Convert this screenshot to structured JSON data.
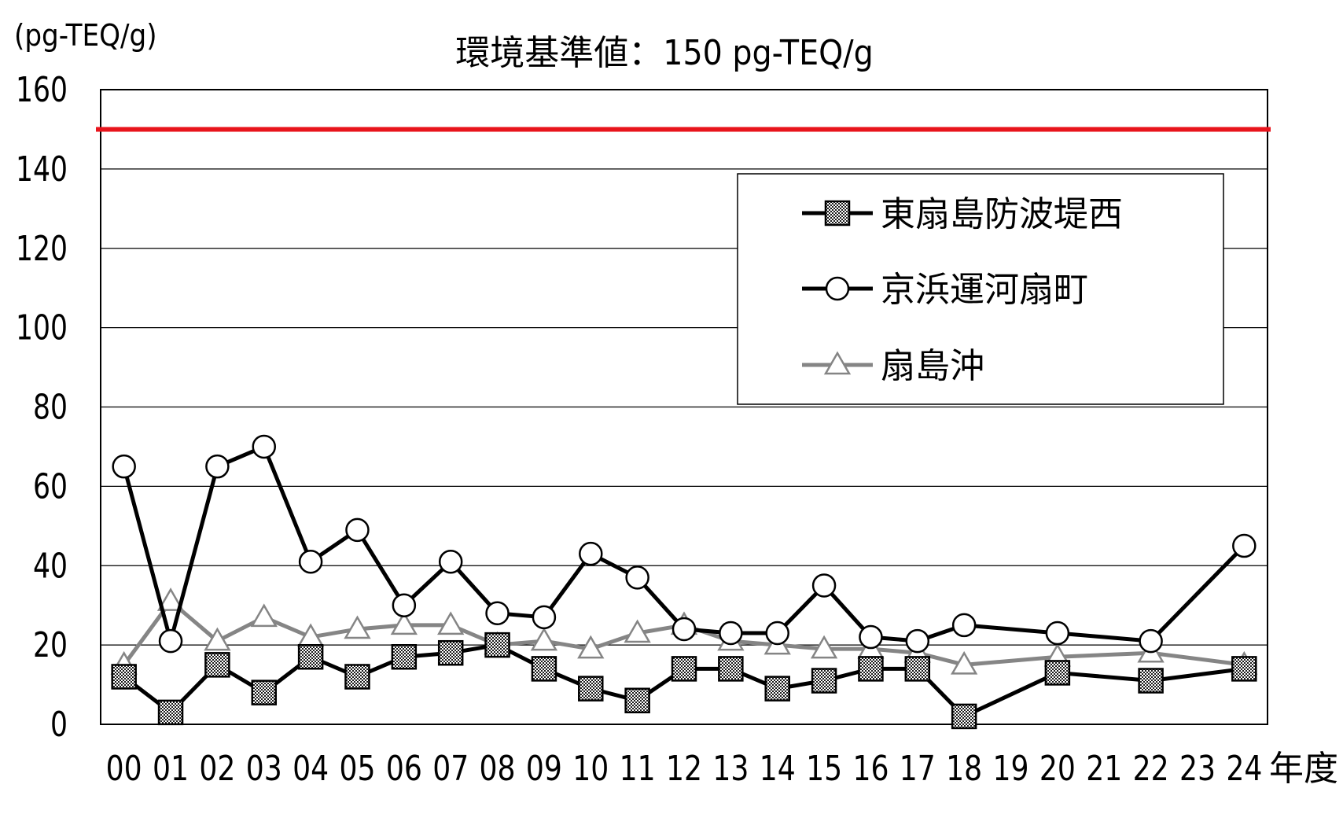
{
  "chart_data": {
    "type": "line",
    "unit_label": "(pg-TEQ/g)",
    "title": "環境基準値：150 pg-TEQ/g",
    "x_suffix": "年度",
    "categories": [
      "00",
      "01",
      "02",
      "03",
      "04",
      "05",
      "06",
      "07",
      "08",
      "09",
      "10",
      "11",
      "12",
      "13",
      "14",
      "15",
      "16",
      "17",
      "18",
      "19",
      "20",
      "21",
      "22",
      "23",
      "24"
    ],
    "ylim": [
      0,
      160
    ],
    "yticks": [
      0,
      20,
      40,
      60,
      80,
      100,
      120,
      140,
      160
    ],
    "grid": true,
    "reference_line": {
      "value": 150,
      "color": "#e8141c"
    },
    "legend_position": "top-right",
    "series": [
      {
        "name": "東扇島防波堤西",
        "marker": "square",
        "color": "#000000",
        "values": [
          12,
          3,
          15,
          8,
          17,
          12,
          17,
          18,
          20,
          14,
          9,
          6,
          14,
          14,
          9,
          11,
          14,
          14,
          2,
          null,
          13,
          null,
          11,
          null,
          14
        ]
      },
      {
        "name": "京浜運河扇町",
        "marker": "circle",
        "color": "#000000",
        "values": [
          65,
          21,
          65,
          70,
          41,
          49,
          30,
          41,
          28,
          27,
          43,
          37,
          24,
          23,
          23,
          35,
          22,
          21,
          25,
          null,
          23,
          null,
          21,
          null,
          45
        ]
      },
      {
        "name": "扇島沖",
        "marker": "triangle",
        "color": "#858585",
        "values": [
          15,
          31,
          21,
          27,
          22,
          24,
          25,
          25,
          20,
          21,
          19,
          23,
          25,
          21,
          20,
          19,
          19,
          18,
          15,
          null,
          17,
          null,
          18,
          null,
          15
        ]
      }
    ]
  }
}
